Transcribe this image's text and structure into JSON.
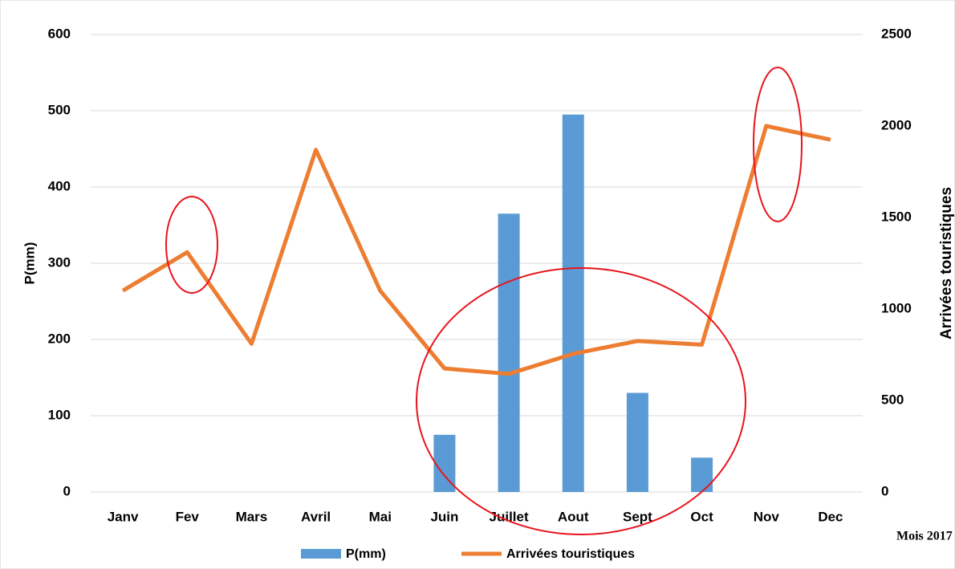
{
  "chart_data": {
    "type": "combo",
    "categories": [
      "Janv",
      "Fev",
      "Mars",
      "Avril",
      "Mai",
      "Juin",
      "Juillet",
      "Aout",
      "Sept",
      "Oct",
      "Nov",
      "Dec"
    ],
    "series": [
      {
        "name": "P(mm)",
        "type": "bar",
        "color": "#5b9bd5",
        "values": [
          0,
          0,
          0,
          0,
          0,
          75,
          365,
          495,
          130,
          45,
          0,
          0
        ]
      },
      {
        "name": "Arrivées touristiques",
        "type": "line",
        "axis": "y2",
        "color": "#ed7d31",
        "values": [
          1100,
          1310,
          810,
          1870,
          1100,
          675,
          645,
          755,
          825,
          805,
          2000,
          1925
        ]
      }
    ],
    "x_label": "Mois 2017",
    "y_label": "P(mm)",
    "y2_label": "Arrivées touristiques",
    "ylim": [
      0,
      600
    ],
    "yticks": [
      0,
      100,
      200,
      300,
      400,
      500,
      600
    ],
    "y2lim": [
      0,
      2500
    ],
    "y2ticks": [
      0,
      500,
      1000,
      1500,
      2000,
      2500
    ],
    "grid": true,
    "legend": "bottom"
  }
}
